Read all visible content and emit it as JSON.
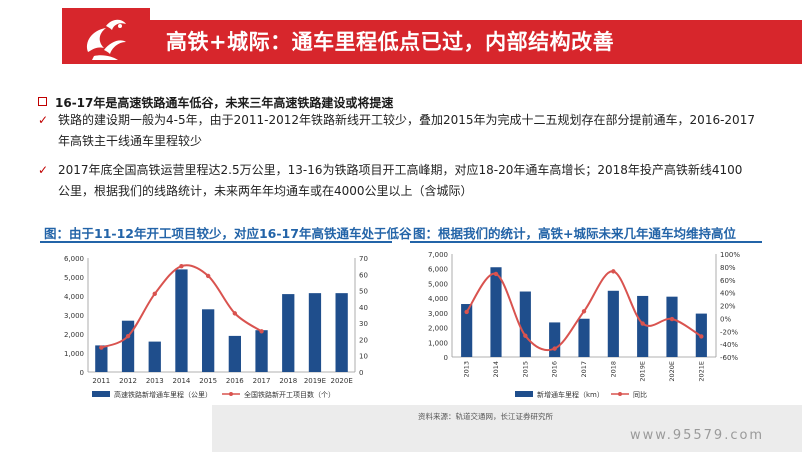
{
  "slide": {
    "title": "高铁+城际：通车里程低点已过，内部结构改善"
  },
  "content": {
    "heading": "16-17年是高速铁路通车低谷，未来三年高速铁路建设或将提速",
    "check_mark": "✓",
    "bullets": [
      "铁路的建设期一般为4-5年，由于2011-2012年铁路新线开工较少，叠加2015年为完成十二五规划存在部分提前通车，2016-2017年高铁主干线通车里程较少",
      "2017年底全国高铁运营里程达2.5万公里，13-16为铁路项目开工高峰期，对应18-20年通车高增长；2018年投产高铁新线4100公里，根据我们的线路统计，未来两年年均通车或在4000公里以上（含城际）"
    ]
  },
  "charts": {
    "left_caption": "图：由于11-12年开工项目较少，对应16-17年高铁通车处于低谷",
    "right_caption": "图：根据我们的统计，高铁+城际未来几年通车均维持高位"
  },
  "colors": {
    "brand_red": "#d7262c",
    "bar_blue": "#1f4e8c",
    "line_red": "#d9534f",
    "caption_blue": "#2364a8"
  },
  "chart_data": [
    {
      "type": "bar",
      "categories": [
        "2011",
        "2012",
        "2013",
        "2014",
        "2015",
        "2016",
        "2017",
        "2018",
        "2019E",
        "2020E"
      ],
      "series": [
        {
          "name": "高速铁路新增通车里程（公里）",
          "type": "bar",
          "axis": "left",
          "values": [
            1400,
            2700,
            1600,
            5400,
            3300,
            1900,
            2200,
            4100,
            4150,
            4150
          ]
        },
        {
          "name": "全国铁路新开工项目数（个）",
          "type": "line",
          "axis": "right",
          "values": [
            15,
            22,
            48,
            65,
            59,
            36,
            25,
            null,
            null,
            null
          ]
        }
      ],
      "ylim_left": [
        0,
        6000
      ],
      "yticks_left": [
        "0",
        "1,000",
        "2,000",
        "3,000",
        "4,000",
        "5,000",
        "6,000"
      ],
      "ylim_right": [
        0,
        70
      ],
      "yticks_right": [
        "0",
        "10",
        "20",
        "30",
        "40",
        "50",
        "60",
        "70"
      ]
    },
    {
      "type": "bar",
      "categories": [
        "2013",
        "2014",
        "2015",
        "2016",
        "2017",
        "2018",
        "2019E",
        "2020E",
        "2021E"
      ],
      "series": [
        {
          "name": "新增通车里程（km）",
          "type": "bar",
          "axis": "left",
          "values": [
            3600,
            6100,
            4450,
            2350,
            2600,
            4500,
            4150,
            4100,
            2950
          ]
        },
        {
          "name": "同比",
          "type": "line",
          "axis": "right",
          "values": [
            10,
            69,
            -27,
            -47,
            11,
            73,
            -8,
            -1,
            -28
          ]
        }
      ],
      "ylim_left": [
        0,
        7000
      ],
      "yticks_left": [
        "0",
        "1,000",
        "2,000",
        "3,000",
        "4,000",
        "5,000",
        "6,000",
        "7,000"
      ],
      "ylim_right": [
        -60,
        100
      ],
      "yticks_right": [
        "-60%",
        "-40%",
        "-20%",
        "0%",
        "20%",
        "40%",
        "60%",
        "80%",
        "100%"
      ]
    }
  ],
  "footer": {
    "source": "资料来源：轨道交通网，长江证券研究所",
    "watermark": "www.95579.com"
  }
}
